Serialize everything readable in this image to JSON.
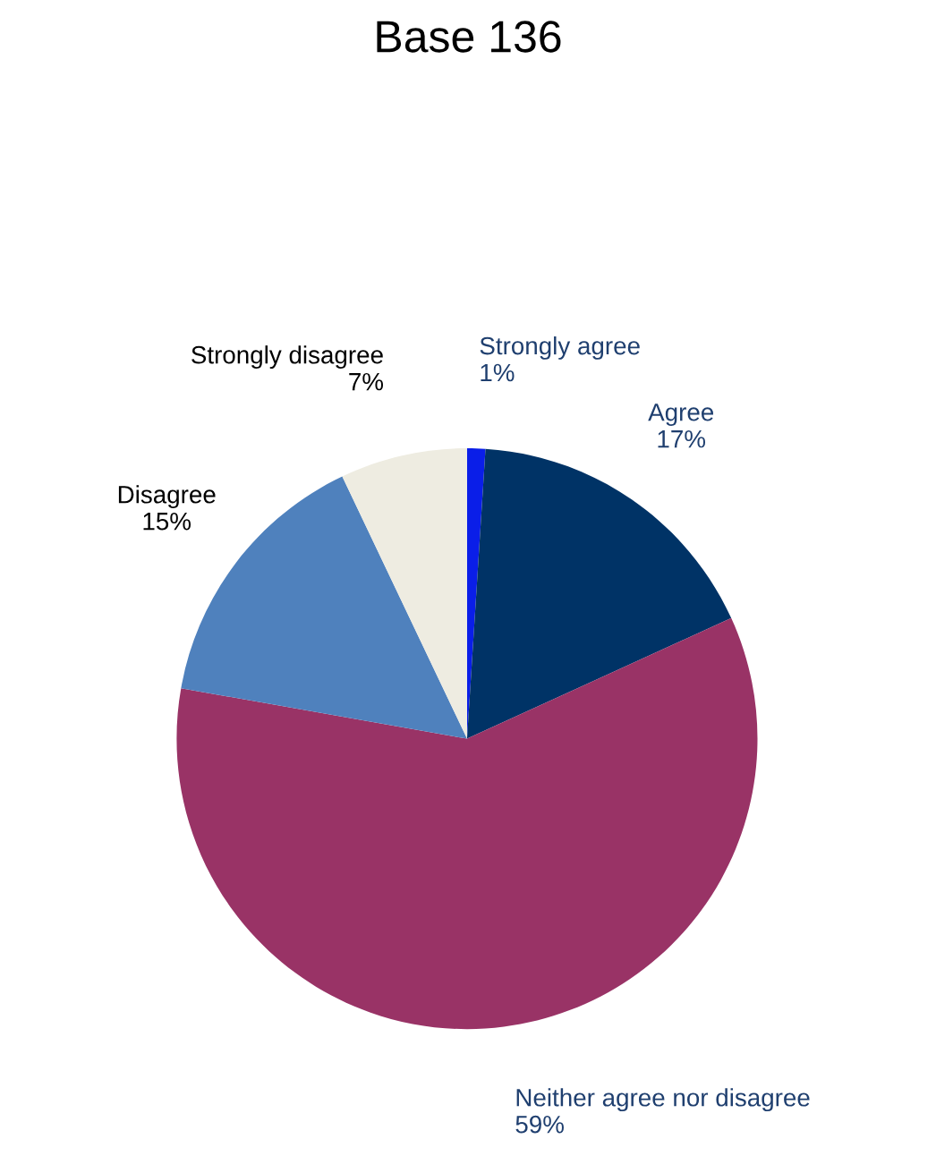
{
  "chart_data": {
    "type": "pie",
    "title": "Base 136",
    "categories": [
      "Strongly agree",
      "Agree",
      "Neither agree nor disagree",
      "Disagree",
      "Strongly disagree"
    ],
    "values": [
      1,
      17,
      59,
      15,
      7
    ],
    "value_labels": [
      "1%",
      "17%",
      "59%",
      "15%",
      "7%"
    ],
    "colors": [
      "#0a1ee8",
      "#003366",
      "#993366",
      "#4f81bd",
      "#eeece1"
    ],
    "legend": false
  }
}
